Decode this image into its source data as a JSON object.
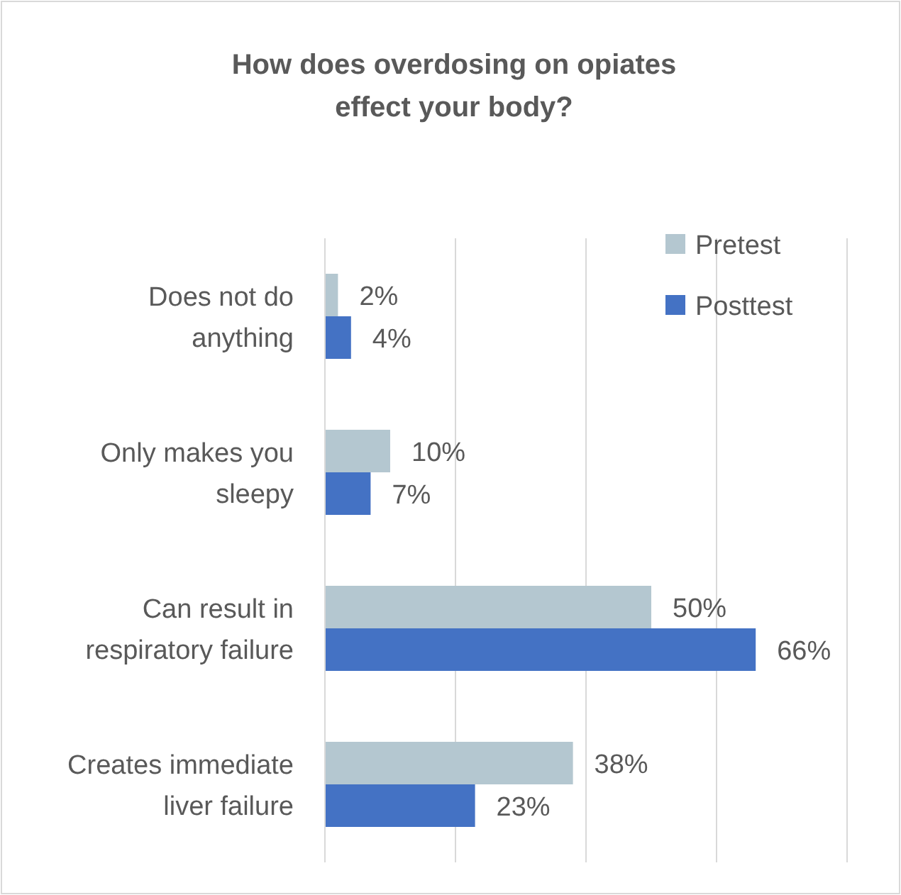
{
  "chart_data": {
    "type": "bar",
    "orientation": "horizontal",
    "title": "How does overdosing on opiates effect your body?",
    "categories": [
      "Does not do anything",
      "Only makes you sleepy",
      "Can result in respiratory failure",
      "Creates immediate liver failure"
    ],
    "series": [
      {
        "name": "Pretest",
        "color": "#b4c7d0",
        "values": [
          2,
          10,
          50,
          38
        ],
        "value_labels": [
          "2%",
          "10%",
          "50%",
          "38%"
        ]
      },
      {
        "name": "Posttest",
        "color": "#4472c4",
        "values": [
          4,
          7,
          66,
          23
        ],
        "value_labels": [
          "4%",
          "7%",
          "66%",
          "23%"
        ]
      }
    ],
    "xlim": [
      0,
      80
    ],
    "xticks": [
      {
        "value": 0,
        "label": null
      },
      {
        "value": 20,
        "label": null
      },
      {
        "value": 40,
        "label": null
      },
      {
        "value": 60,
        "label": null
      },
      {
        "value": 80,
        "label": null
      }
    ],
    "tick_labels": "y",
    "grid": "x",
    "legend": "top right"
  }
}
